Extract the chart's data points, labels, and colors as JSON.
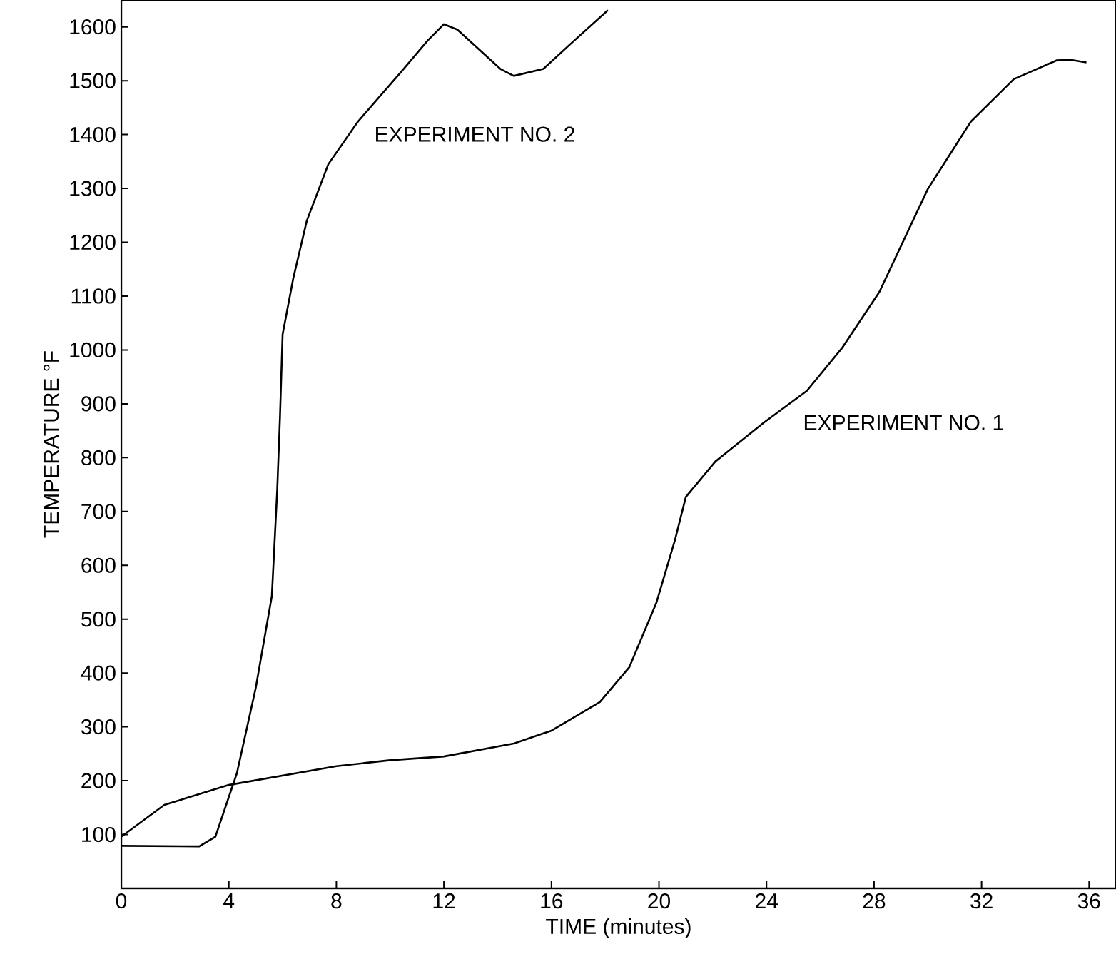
{
  "chart_data": {
    "type": "line",
    "xlabel": "TIME (minutes)",
    "ylabel": "TEMPERATURE °F",
    "xlim": [
      0,
      37
    ],
    "ylim": [
      0,
      1650
    ],
    "xticks": [
      0,
      4,
      8,
      12,
      16,
      20,
      24,
      28,
      32,
      36
    ],
    "yticks": [
      100,
      200,
      300,
      400,
      500,
      600,
      700,
      800,
      900,
      1000,
      1100,
      1200,
      1300,
      1400,
      1500,
      1600
    ],
    "grid": false,
    "legend": false,
    "marker": "none",
    "line_style": "solid",
    "series": [
      {
        "name": "EXPERIMENT NO. 1",
        "color": "#000000",
        "x": [
          0,
          1.6,
          4,
          8,
          10,
          12,
          14.6,
          16,
          17.8,
          18.9,
          19.9,
          20.6,
          21,
          22.1,
          23.9,
          25.5,
          26.8,
          28.2,
          30,
          31.6,
          33.2,
          34.8,
          35.3,
          35.9
        ],
        "values": [
          96,
          155,
          192,
          227,
          238,
          245,
          269,
          293,
          346,
          411,
          530,
          648,
          727,
          793,
          865,
          924,
          1003,
          1108,
          1299,
          1424,
          1503,
          1538,
          1539,
          1534
        ]
      },
      {
        "name": "EXPERIMENT NO. 2",
        "color": "#000000",
        "x": [
          0,
          2.9,
          3.5,
          4.3,
          5.0,
          5.6,
          5.8,
          5.9,
          6.0,
          6.4,
          6.9,
          7.7,
          8.8,
          10.4,
          11.4,
          12.0,
          12.5,
          14.1,
          14.6,
          15.7,
          16.7,
          18.1
        ],
        "values": [
          79,
          78,
          96,
          214,
          372,
          543,
          740,
          872,
          1029,
          1134,
          1240,
          1345,
          1424,
          1516,
          1575,
          1605,
          1595,
          1522,
          1509,
          1522,
          1568,
          1631
        ]
      }
    ]
  }
}
